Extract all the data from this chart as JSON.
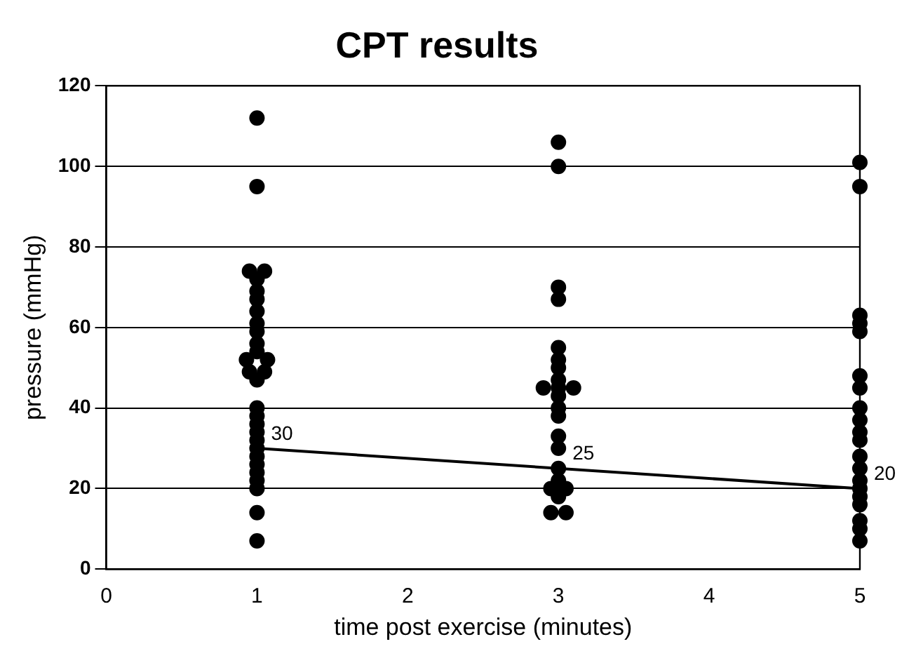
{
  "chart_data": {
    "type": "scatter",
    "title": "CPT results",
    "xlabel": "time post exercise (minutes)",
    "ylabel": "pressure (mmHg)",
    "xlim": [
      0,
      5
    ],
    "xticks": [
      0,
      1,
      2,
      3,
      4,
      5
    ],
    "ylim": [
      0,
      120
    ],
    "yticks": [
      0,
      20,
      40,
      60,
      80,
      100,
      120
    ],
    "grid": "y",
    "marker": "circle",
    "legend": false,
    "series": [
      {
        "type": "scatter",
        "color": "#000000",
        "x": [
          1,
          1,
          0.95,
          1.05,
          1,
          1,
          1,
          1,
          1,
          1,
          1,
          1,
          0.93,
          1.07,
          0.95,
          1.05,
          1,
          1,
          1,
          1,
          1,
          1,
          1,
          1,
          1,
          1,
          1,
          1,
          1,
          1
        ],
        "values": [
          112,
          95,
          74,
          74,
          72,
          69,
          67,
          64,
          61,
          59,
          56,
          54,
          52,
          52,
          49,
          49,
          47,
          40,
          38,
          36,
          34,
          32,
          30,
          28,
          26,
          24,
          22,
          20,
          14,
          7
        ]
      },
      {
        "type": "scatter",
        "color": "#000000",
        "x": [
          3,
          3,
          3,
          3,
          3,
          3,
          3,
          3,
          2.9,
          3.1,
          3,
          3,
          3,
          3,
          3,
          3,
          3,
          3,
          2.95,
          3.05,
          3,
          2.95,
          3.05
        ],
        "values": [
          106,
          100,
          70,
          67,
          55,
          52,
          50,
          47,
          45,
          45,
          45,
          43,
          40,
          38,
          33,
          30,
          25,
          22,
          20,
          20,
          18,
          14,
          14
        ]
      },
      {
        "type": "scatter",
        "color": "#000000",
        "x": [
          5,
          5,
          5,
          5,
          5,
          5,
          5,
          5,
          5,
          5,
          5,
          5,
          5,
          5,
          5,
          5,
          5,
          5,
          5,
          5
        ],
        "values": [
          101,
          95,
          63,
          61,
          59,
          48,
          45,
          40,
          37,
          34,
          32,
          28,
          25,
          22,
          20,
          18,
          16,
          12,
          10,
          7
        ]
      },
      {
        "type": "line",
        "color": "#000000",
        "x": [
          1,
          3,
          5
        ],
        "values": [
          30,
          25,
          20
        ],
        "value_labels": [
          "30",
          "25",
          "20"
        ],
        "marker": "none",
        "line_style": "solid"
      }
    ]
  }
}
